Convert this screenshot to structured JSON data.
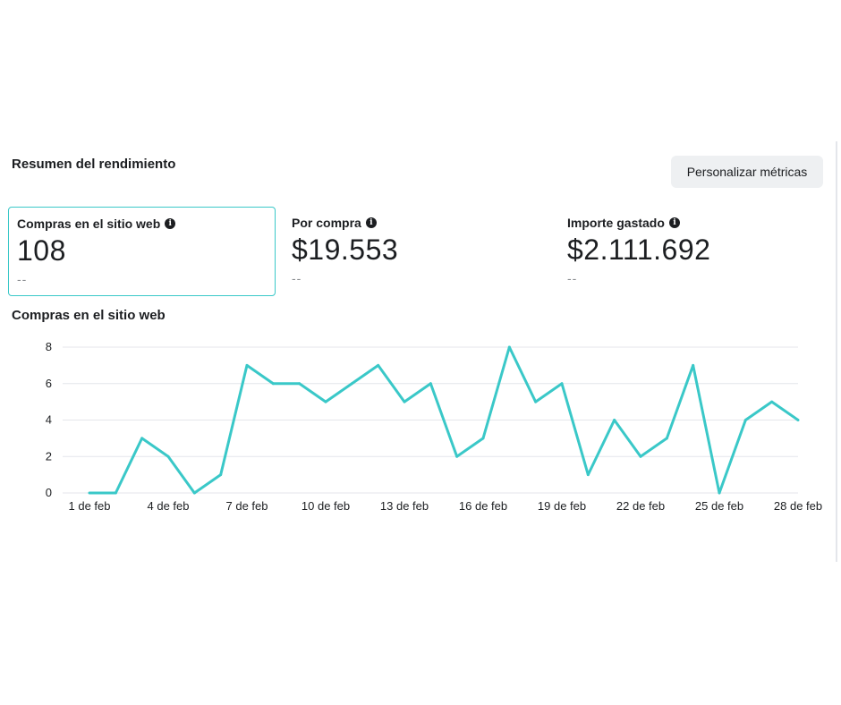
{
  "header": {
    "title": "Resumen del rendimiento",
    "customize_label": "Personalizar métricas"
  },
  "metrics": [
    {
      "label": "Compras en el sitio web",
      "value": "108",
      "compare": "--",
      "selected": true
    },
    {
      "label": "Por compra",
      "value": "$19.553",
      "compare": "--",
      "selected": false
    },
    {
      "label": "Importe gastado",
      "value": "$2.111.692",
      "compare": "--",
      "selected": false
    }
  ],
  "info_icon": "info-icon",
  "colors": {
    "accent": "#3ac8c8",
    "grid": "#e4e6eb"
  },
  "chart_data": {
    "type": "line",
    "title": "Compras en el sitio web",
    "x": [
      "1 de feb",
      "2 de feb",
      "3 de feb",
      "4 de feb",
      "5 de feb",
      "6 de feb",
      "7 de feb",
      "8 de feb",
      "9 de feb",
      "10 de feb",
      "11 de feb",
      "12 de feb",
      "13 de feb",
      "14 de feb",
      "15 de feb",
      "16 de feb",
      "17 de feb",
      "18 de feb",
      "19 de feb",
      "20 de feb",
      "21 de feb",
      "22 de feb",
      "23 de feb",
      "24 de feb",
      "25 de feb",
      "26 de feb",
      "27 de feb",
      "28 de feb"
    ],
    "x_tick_labels": [
      "1 de feb",
      "4 de feb",
      "7 de feb",
      "10 de feb",
      "13 de feb",
      "16 de feb",
      "19 de feb",
      "22 de feb",
      "25 de feb",
      "28 de feb"
    ],
    "series": [
      {
        "values": [
          0,
          0,
          3,
          2,
          0,
          1,
          7,
          6,
          6,
          5,
          6,
          7,
          5,
          6,
          2,
          3,
          8,
          5,
          6,
          1,
          4,
          2,
          3,
          7,
          0,
          4,
          5,
          4
        ]
      }
    ],
    "ylim": [
      0,
      8
    ],
    "y_ticks": [
      0,
      2,
      4,
      6,
      8
    ],
    "grid": true,
    "legend": "none"
  }
}
